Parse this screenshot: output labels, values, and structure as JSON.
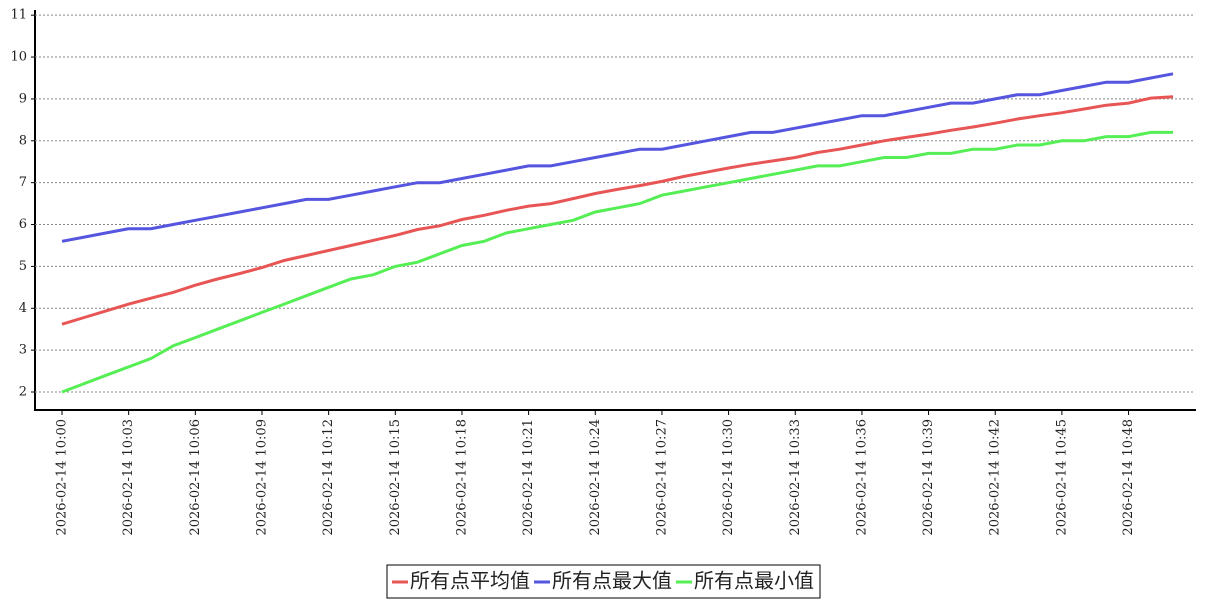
{
  "chart_data": {
    "type": "line",
    "categories": [
      "2026-02-14 10:00",
      null,
      null,
      "2026-02-14 10:03",
      null,
      null,
      "2026-02-14 10:06",
      null,
      null,
      "2026-02-14 10:09",
      null,
      null,
      "2026-02-14 10:12",
      null,
      null,
      "2026-02-14 10:15",
      null,
      null,
      "2026-02-14 10:18",
      null,
      null,
      "2026-02-14 10:21",
      null,
      null,
      "2026-02-14 10:24",
      null,
      null,
      "2026-02-14 10:27",
      null,
      null,
      "2026-02-14 10:30",
      null,
      null,
      "2026-02-14 10:33",
      null,
      null,
      "2026-02-14 10:36",
      null,
      null,
      "2026-02-14 10:39",
      null,
      null,
      "2026-02-14 10:42",
      null,
      null,
      "2026-02-14 10:45",
      null,
      null,
      "2026-02-14 10:48",
      null,
      null
    ],
    "series": [
      {
        "name": "所有点平均值",
        "color": "#e85555",
        "values": [
          3.62,
          3.78,
          3.94,
          4.1,
          4.24,
          4.38,
          4.55,
          4.7,
          4.83,
          4.97,
          5.14,
          5.26,
          5.38,
          5.5,
          5.62,
          5.74,
          5.88,
          5.97,
          6.12,
          6.22,
          6.34,
          6.44,
          6.5,
          6.62,
          6.74,
          6.84,
          6.93,
          7.03,
          7.15,
          7.25,
          7.35,
          7.44,
          7.52,
          7.6,
          7.72,
          7.8,
          7.9,
          8.0,
          8.08,
          8.16,
          8.25,
          8.33,
          8.42,
          8.52,
          8.6,
          8.67,
          8.76,
          8.85,
          8.9,
          9.02,
          9.05
        ]
      },
      {
        "name": "所有点最大值",
        "color": "#5555e0",
        "values": [
          5.6,
          5.7,
          5.8,
          5.9,
          5.9,
          6.0,
          6.1,
          6.2,
          6.3,
          6.4,
          6.5,
          6.6,
          6.6,
          6.7,
          6.8,
          6.9,
          7.0,
          7.0,
          7.1,
          7.2,
          7.3,
          7.4,
          7.4,
          7.5,
          7.6,
          7.7,
          7.8,
          7.8,
          7.9,
          8.0,
          8.1,
          8.2,
          8.2,
          8.3,
          8.4,
          8.5,
          8.6,
          8.6,
          8.7,
          8.8,
          8.9,
          8.9,
          9.0,
          9.1,
          9.1,
          9.2,
          9.3,
          9.4,
          9.4,
          9.5,
          9.6
        ]
      },
      {
        "name": "所有点最小值",
        "color": "#55ee55",
        "values": [
          2.0,
          2.2,
          2.4,
          2.6,
          2.8,
          3.1,
          3.3,
          3.5,
          3.7,
          3.9,
          4.1,
          4.3,
          4.5,
          4.7,
          4.8,
          5.0,
          5.1,
          5.3,
          5.5,
          5.6,
          5.8,
          5.9,
          6.0,
          6.1,
          6.3,
          6.4,
          6.5,
          6.7,
          6.8,
          6.9,
          7.0,
          7.1,
          7.2,
          7.3,
          7.4,
          7.4,
          7.5,
          7.6,
          7.6,
          7.7,
          7.7,
          7.8,
          7.8,
          7.9,
          7.9,
          8.0,
          8.0,
          8.1,
          8.1,
          8.2,
          8.2
        ]
      }
    ],
    "ylim": [
      1.57,
      11.1
    ],
    "yticks": [
      2,
      3,
      4,
      5,
      6,
      7,
      8,
      9,
      10,
      11
    ],
    "grid": true,
    "legend": "bottom"
  }
}
